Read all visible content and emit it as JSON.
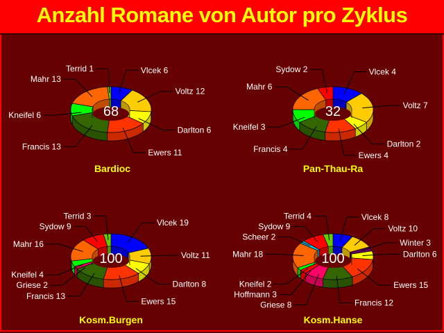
{
  "title": "Anzahl Romane von Autor pro Zyklus",
  "colors": {
    "Vlcek": "#0000ff",
    "Voltz": "#ffcc00",
    "Winter": "#660066",
    "Darlton": "#ffff00",
    "Ewers": "#ff3300",
    "Francis": "#336600",
    "Griese": "#ff0066",
    "Hoffmann": "#ff0000",
    "Kneifel": "#00ff00",
    "Mahr": "#ff6600",
    "Scheer": "#00ccff",
    "Sydow": "#ff0000",
    "Terrid": "#66cc00",
    "background": "#660000",
    "title_bar": "#ff0000",
    "title_text": "#ffff00"
  },
  "chart_data": [
    {
      "type": "pie",
      "style": "3d-donut",
      "title": "Bardioc",
      "total": 68,
      "categories": [
        "Vlcek",
        "Voltz",
        "Darlton",
        "Ewers",
        "Francis",
        "Kneifel",
        "Mahr",
        "Terrid"
      ],
      "values": [
        6,
        12,
        6,
        11,
        13,
        6,
        13,
        1
      ]
    },
    {
      "type": "pie",
      "style": "3d-donut",
      "title": "Pan-Thau-Ra",
      "total": 32,
      "categories": [
        "Vlcek",
        "Voltz",
        "Darlton",
        "Ewers",
        "Francis",
        "Kneifel",
        "Mahr",
        "Sydow"
      ],
      "values": [
        4,
        7,
        2,
        4,
        4,
        3,
        6,
        2
      ]
    },
    {
      "type": "pie",
      "style": "3d-donut",
      "title": "Kosm.Burgen",
      "total": 100,
      "categories": [
        "Vlcek",
        "Voltz",
        "Darlton",
        "Ewers",
        "Francis",
        "Griese",
        "Kneifel",
        "Mahr",
        "Sydow",
        "Terrid"
      ],
      "values": [
        19,
        11,
        8,
        15,
        13,
        2,
        4,
        16,
        9,
        3
      ]
    },
    {
      "type": "pie",
      "style": "3d-donut",
      "title": "Kosm.Hanse",
      "total": 100,
      "categories": [
        "Vlcek",
        "Voltz",
        "Winter",
        "Darlton",
        "Ewers",
        "Francis",
        "Griese",
        "Hoffmann",
        "Kneifel",
        "Mahr",
        "Scheer",
        "Sydow",
        "Terrid"
      ],
      "values": [
        8,
        10,
        3,
        6,
        15,
        12,
        8,
        3,
        2,
        18,
        2,
        9,
        4
      ]
    }
  ]
}
